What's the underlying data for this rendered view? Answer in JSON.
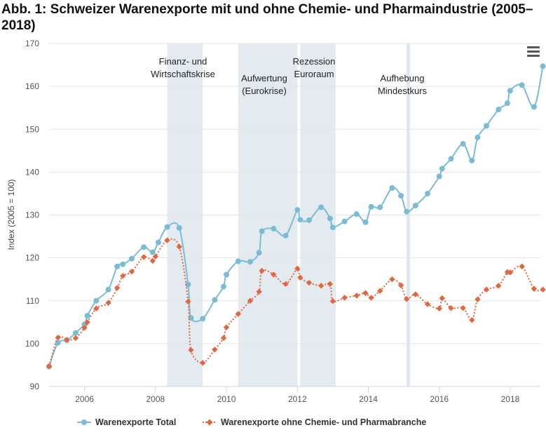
{
  "title": "Abb. 1: Schweizer Warenexporte mit und ohne Chemie- und Pharmaindustrie (2005–2018)",
  "menu_icon": "hamburger-menu-icon",
  "chart_data": {
    "type": "line",
    "title": "Abb. 1: Schweizer Warenexporte mit und ohne Chemie- und Pharmaindustrie (2005–2018)",
    "xlabel": "",
    "ylabel": "Index (2005 = 100)",
    "xlim": [
      2005,
      2018.85
    ],
    "ylim": [
      90,
      170
    ],
    "yticks": [
      90,
      100,
      110,
      120,
      130,
      140,
      150,
      160,
      170
    ],
    "xticks": [
      2006,
      2008,
      2010,
      2012,
      2014,
      2016,
      2018
    ],
    "grid": true,
    "legend_position": "bottom",
    "bands": [
      {
        "label": "Finanz- und Wirtschaftskrise",
        "from": 2008.33,
        "to": 2009.33,
        "color": "#e3ebf0"
      },
      {
        "label": "Aufwertung (Eurokrise)",
        "from": 2010.33,
        "to": 2012.0,
        "color": "#e3ebf0"
      },
      {
        "label": "Rezession Euroraum",
        "from": 2012.08,
        "to": 2013.08,
        "color": "#e3ebf0"
      },
      {
        "label": "Aufhebung Mindestkurs",
        "from": 2015.08,
        "to": 2015.17,
        "color": "#dde6ee"
      }
    ],
    "series": [
      {
        "name": "Warenexporte Total",
        "color": "#7bbcd5",
        "style": "solid",
        "marker": "circle",
        "x": [
          2005.0,
          2005.25,
          2005.5,
          2005.75,
          2006.0,
          2006.08,
          2006.33,
          2006.67,
          2006.92,
          2007.08,
          2007.33,
          2007.67,
          2007.92,
          2008.08,
          2008.33,
          2008.67,
          2008.92,
          2009.0,
          2009.33,
          2009.67,
          2009.92,
          2010.0,
          2010.33,
          2010.67,
          2010.92,
          2011.0,
          2011.33,
          2011.67,
          2012.0,
          2012.08,
          2012.33,
          2012.67,
          2012.92,
          2013.0,
          2013.33,
          2013.67,
          2013.92,
          2014.08,
          2014.33,
          2014.67,
          2014.92,
          2015.08,
          2015.33,
          2015.67,
          2016.0,
          2016.08,
          2016.33,
          2016.67,
          2016.92,
          2017.08,
          2017.33,
          2017.67,
          2017.92,
          2018.0,
          2018.33,
          2018.67,
          2018.92
        ],
        "values": [
          94.7,
          100.2,
          100.8,
          102.5,
          104.5,
          106.5,
          110.0,
          112.6,
          118.0,
          118.5,
          119.8,
          122.5,
          121.3,
          123.6,
          127.2,
          127.0,
          113.8,
          106.0,
          105.8,
          110.2,
          113.3,
          116.1,
          119.2,
          119.1,
          121.2,
          126.2,
          126.8,
          125.2,
          131.2,
          128.9,
          128.8,
          131.8,
          129.2,
          127.1,
          128.5,
          130.2,
          128.3,
          131.9,
          131.8,
          136.3,
          134.5,
          130.8,
          132.2,
          135.0,
          139.0,
          140.8,
          143.1,
          146.6,
          142.7,
          148.1,
          150.8,
          154.6,
          156.1,
          159.0,
          160.3,
          155.2,
          164.7
        ]
      },
      {
        "name": "Warenexporte ohne Chemie- und Pharmabranche",
        "color": "#e2673f",
        "style": "dotted",
        "marker": "diamond",
        "x": [
          2005.0,
          2005.25,
          2005.5,
          2005.75,
          2006.0,
          2006.08,
          2006.33,
          2006.67,
          2006.92,
          2007.08,
          2007.33,
          2007.67,
          2007.92,
          2008.0,
          2008.33,
          2008.67,
          2008.92,
          2009.0,
          2009.33,
          2009.67,
          2009.92,
          2010.0,
          2010.33,
          2010.67,
          2010.92,
          2011.0,
          2011.33,
          2011.67,
          2012.0,
          2012.08,
          2012.33,
          2012.67,
          2012.92,
          2013.0,
          2013.33,
          2013.67,
          2013.92,
          2014.08,
          2014.33,
          2014.67,
          2014.92,
          2015.08,
          2015.33,
          2015.67,
          2016.0,
          2016.08,
          2016.33,
          2016.67,
          2016.92,
          2017.08,
          2017.33,
          2017.67,
          2017.92,
          2018.0,
          2018.33,
          2018.67,
          2018.92
        ],
        "values": [
          94.7,
          101.4,
          100.9,
          101.3,
          103.7,
          105.0,
          108.2,
          109.5,
          113.0,
          115.8,
          116.8,
          120.2,
          119.3,
          120.3,
          124.1,
          122.6,
          109.8,
          98.5,
          95.5,
          98.6,
          101.3,
          103.8,
          106.9,
          110.0,
          112.1,
          117.0,
          116.1,
          113.9,
          117.5,
          115.4,
          114.2,
          113.5,
          113.9,
          109.9,
          110.7,
          111.2,
          111.8,
          110.7,
          112.3,
          115.0,
          113.6,
          110.4,
          111.5,
          109.2,
          108.2,
          110.6,
          108.3,
          108.3,
          105.5,
          110.3,
          112.6,
          113.5,
          116.7,
          116.6,
          118.0,
          112.8,
          112.6
        ]
      }
    ]
  }
}
